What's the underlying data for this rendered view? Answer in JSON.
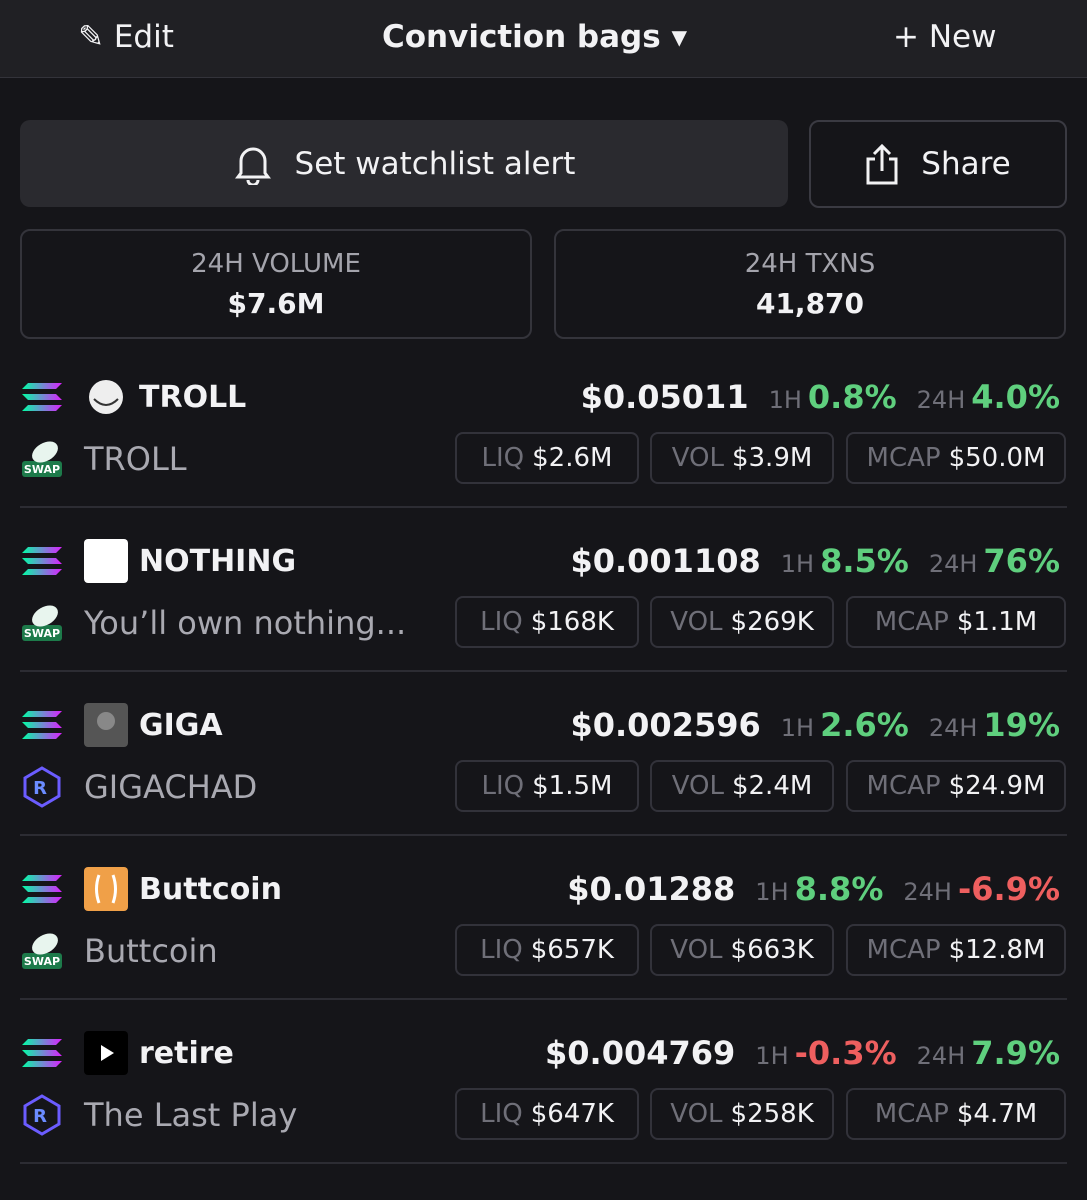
{
  "header": {
    "edit": "Edit",
    "title": "Conviction bags",
    "new": "New"
  },
  "actions": {
    "alert": "Set watchlist alert",
    "share": "Share"
  },
  "stats": [
    {
      "label": "24H VOLUME",
      "value": "$7.6M"
    },
    {
      "label": "24H TXNS",
      "value": "41,870"
    }
  ],
  "labels": {
    "h1": "1H",
    "h24": "24H",
    "liq": "LIQ",
    "vol": "VOL",
    "mcap": "MCAP"
  },
  "tokens": [
    {
      "symbol": "TROLL",
      "name": "TROLL",
      "price": "$0.05011",
      "change_1h": "0.8%",
      "change_24h": "4.0%",
      "liq": "$2.6M",
      "vol": "$3.9M",
      "mcap": "$50.0M"
    },
    {
      "symbol": "NOTHING",
      "name": "You’ll own nothing...",
      "price": "$0.001108",
      "change_1h": "8.5%",
      "change_24h": "76%",
      "liq": "$168K",
      "vol": "$269K",
      "mcap": "$1.1M"
    },
    {
      "symbol": "GIGA",
      "name": "GIGACHAD",
      "price": "$0.002596",
      "change_1h": "2.6%",
      "change_24h": "19%",
      "liq": "$1.5M",
      "vol": "$2.4M",
      "mcap": "$24.9M"
    },
    {
      "symbol": "Buttcoin",
      "name": "Buttcoin",
      "price": "$0.01288",
      "change_1h": "8.8%",
      "change_24h": "-6.9%",
      "liq": "$657K",
      "vol": "$663K",
      "mcap": "$12.8M"
    },
    {
      "symbol": "retire",
      "name": "The Last Play",
      "price": "$0.004769",
      "change_1h": "-0.3%",
      "change_24h": "7.9%",
      "liq": "$647K",
      "vol": "$258K",
      "mcap": "$4.7M"
    }
  ]
}
